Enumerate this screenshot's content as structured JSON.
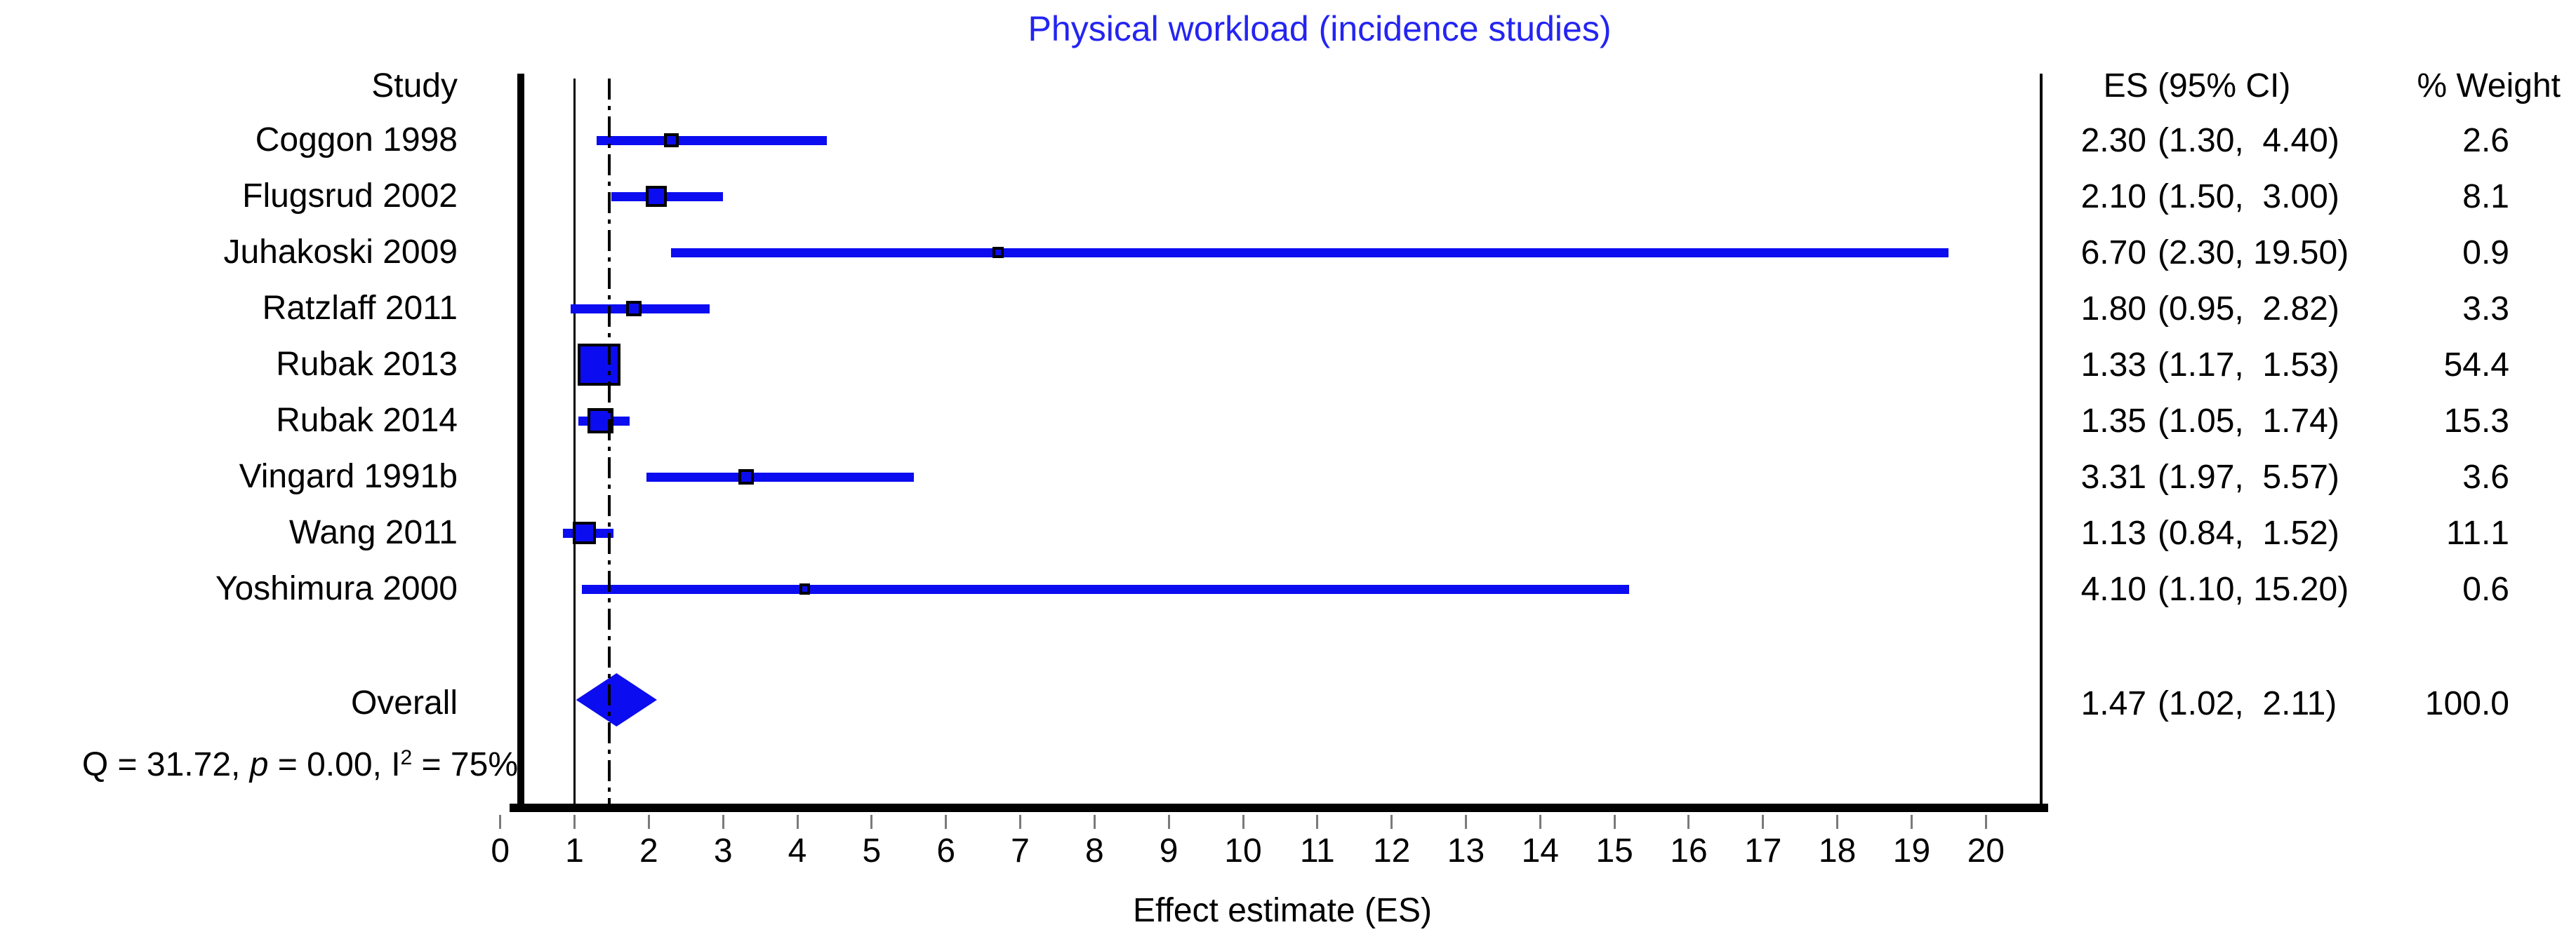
{
  "colors": {
    "marker": "#0c0cf0",
    "title": "#2424f2",
    "text": "#000000",
    "tick": "#7a7a7a"
  },
  "chart_data": {
    "type": "forest",
    "title": "Physical workload (incidence studies)",
    "xlabel": "Effect estimate (ES)",
    "x_ticks": [
      0,
      1,
      2,
      3,
      4,
      5,
      6,
      7,
      8,
      9,
      10,
      11,
      12,
      13,
      14,
      15,
      16,
      17,
      18,
      19,
      20
    ],
    "xlim": [
      0,
      20
    ],
    "grid": false,
    "legend_position": "none",
    "null_line": 1.0,
    "pooled_line": 1.47,
    "columns": {
      "study": "Study",
      "es_ci": "ES (95% CI)",
      "weight": "% Weight"
    },
    "studies": [
      {
        "label": "Coggon 1998",
        "es": 2.3,
        "lo": 1.3,
        "hi": 4.4,
        "weight": 2.6
      },
      {
        "label": "Flugsrud 2002",
        "es": 2.1,
        "lo": 1.5,
        "hi": 3.0,
        "weight": 8.1
      },
      {
        "label": "Juhakoski 2009",
        "es": 6.7,
        "lo": 2.3,
        "hi": 19.5,
        "weight": 0.9
      },
      {
        "label": "Ratzlaff 2011",
        "es": 1.8,
        "lo": 0.95,
        "hi": 2.82,
        "weight": 3.3
      },
      {
        "label": "Rubak 2013",
        "es": 1.33,
        "lo": 1.17,
        "hi": 1.53,
        "weight": 54.4
      },
      {
        "label": "Rubak 2014",
        "es": 1.35,
        "lo": 1.05,
        "hi": 1.74,
        "weight": 15.3
      },
      {
        "label": "Vingard 1991b",
        "es": 3.31,
        "lo": 1.97,
        "hi": 5.57,
        "weight": 3.6
      },
      {
        "label": "Wang 2011",
        "es": 1.13,
        "lo": 0.84,
        "hi": 1.52,
        "weight": 11.1
      },
      {
        "label": "Yoshimura 2000",
        "es": 4.1,
        "lo": 1.1,
        "hi": 15.2,
        "weight": 0.6
      }
    ],
    "overall": {
      "label": "Overall",
      "es": 1.47,
      "lo": 1.02,
      "hi": 2.11,
      "weight": 100.0
    },
    "heterogeneity": {
      "q_prefix": "Q = 31.72, ",
      "p_symbol": "p",
      "middle": " = 0.00, I",
      "superscript": "2",
      "suffix": " = 75%"
    }
  }
}
